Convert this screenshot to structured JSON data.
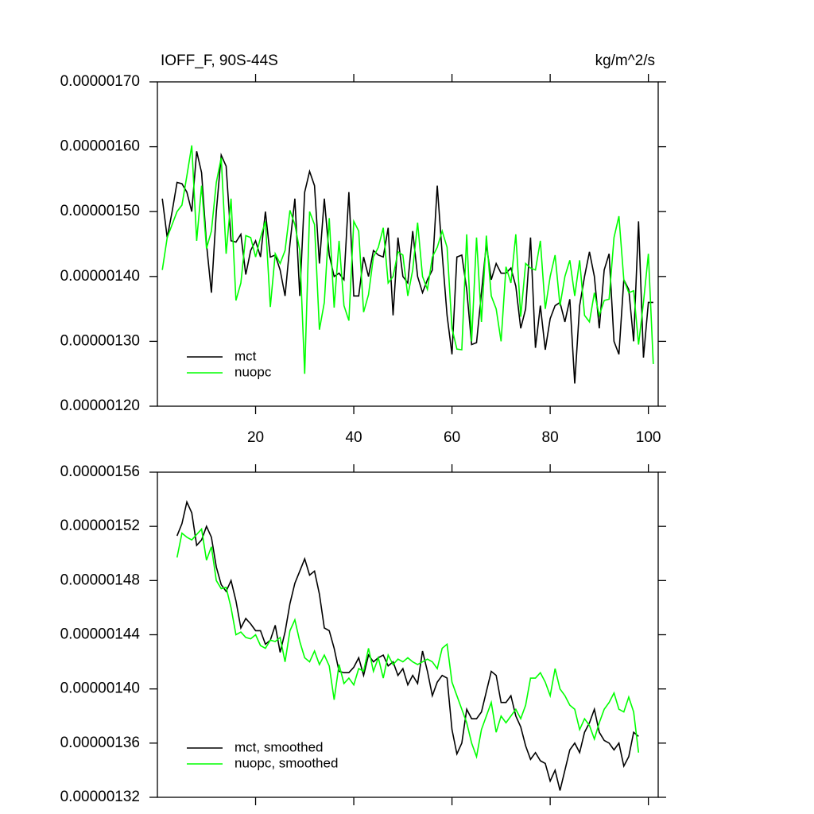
{
  "chart_data": [
    {
      "type": "line",
      "title": "IOFF_F, 90S-44S",
      "units_label": "kg/m^2/s",
      "x": [
        1,
        2,
        3,
        4,
        5,
        6,
        7,
        8,
        9,
        10,
        11,
        12,
        13,
        14,
        15,
        16,
        17,
        18,
        19,
        20,
        21,
        22,
        23,
        24,
        25,
        26,
        27,
        28,
        29,
        30,
        31,
        32,
        33,
        34,
        35,
        36,
        37,
        38,
        39,
        40,
        41,
        42,
        43,
        44,
        45,
        46,
        47,
        48,
        49,
        50,
        51,
        52,
        53,
        54,
        55,
        56,
        57,
        58,
        59,
        60,
        61,
        62,
        63,
        64,
        65,
        66,
        67,
        68,
        69,
        70,
        71,
        72,
        73,
        74,
        75,
        76,
        77,
        78,
        79,
        80,
        81,
        82,
        83,
        84,
        85,
        86,
        87,
        88,
        89,
        90,
        91,
        92,
        93,
        94,
        95,
        96,
        97,
        98,
        99,
        100,
        101
      ],
      "series": [
        {
          "name": "mct",
          "color": "#000000",
          "values": [
            1.52e-06,
            1.46e-06,
            1.5e-06,
            1.545e-06,
            1.543e-06,
            1.53e-06,
            1.5e-06,
            1.593e-06,
            1.56e-06,
            1.45e-06,
            1.375e-06,
            1.5e-06,
            1.587e-06,
            1.57e-06,
            1.455e-06,
            1.453e-06,
            1.465e-06,
            1.403e-06,
            1.44e-06,
            1.455e-06,
            1.43e-06,
            1.5e-06,
            1.43e-06,
            1.433e-06,
            1.41e-06,
            1.37e-06,
            1.45e-06,
            1.52e-06,
            1.37e-06,
            1.53e-06,
            1.562e-06,
            1.54e-06,
            1.42e-06,
            1.52e-06,
            1.433e-06,
            1.4e-06,
            1.405e-06,
            1.395e-06,
            1.53e-06,
            1.37e-06,
            1.37e-06,
            1.43e-06,
            1.4e-06,
            1.44e-06,
            1.433e-06,
            1.43e-06,
            1.475e-06,
            1.34e-06,
            1.46e-06,
            1.4e-06,
            1.39e-06,
            1.47e-06,
            1.4e-06,
            1.375e-06,
            1.395e-06,
            1.41e-06,
            1.54e-06,
            1.435e-06,
            1.34e-06,
            1.28e-06,
            1.43e-06,
            1.433e-06,
            1.38e-06,
            1.295e-06,
            1.298e-06,
            1.375e-06,
            1.45e-06,
            1.395e-06,
            1.42e-06,
            1.405e-06,
            1.405e-06,
            1.413e-06,
            1.385e-06,
            1.32e-06,
            1.35e-06,
            1.46e-06,
            1.29e-06,
            1.355e-06,
            1.287e-06,
            1.335e-06,
            1.355e-06,
            1.36e-06,
            1.33e-06,
            1.365e-06,
            1.235e-06,
            1.355e-06,
            1.4e-06,
            1.438e-06,
            1.4e-06,
            1.32e-06,
            1.41e-06,
            1.435e-06,
            1.3e-06,
            1.28e-06,
            1.395e-06,
            1.38e-06,
            1.3e-06,
            1.485e-06,
            1.275e-06,
            1.36e-06,
            1.36e-06
          ]
        },
        {
          "name": "nuopc",
          "color": "#00ff00",
          "values": [
            1.41e-06,
            1.46e-06,
            1.48e-06,
            1.5e-06,
            1.51e-06,
            1.555e-06,
            1.602e-06,
            1.455e-06,
            1.54e-06,
            1.443e-06,
            1.47e-06,
            1.545e-06,
            1.583e-06,
            1.435e-06,
            1.52e-06,
            1.363e-06,
            1.39e-06,
            1.463e-06,
            1.46e-06,
            1.43e-06,
            1.46e-06,
            1.485e-06,
            1.353e-06,
            1.435e-06,
            1.42e-06,
            1.44e-06,
            1.502e-06,
            1.48e-06,
            1.44e-06,
            1.25e-06,
            1.5e-06,
            1.48e-06,
            1.318e-06,
            1.36e-06,
            1.49e-06,
            1.352e-06,
            1.455e-06,
            1.355e-06,
            1.332e-06,
            1.485e-06,
            1.47e-06,
            1.345e-06,
            1.372e-06,
            1.43e-06,
            1.445e-06,
            1.475e-06,
            1.39e-06,
            1.4e-06,
            1.438e-06,
            1.433e-06,
            1.37e-06,
            1.41e-06,
            1.483e-06,
            1.4e-06,
            1.38e-06,
            1.43e-06,
            1.445e-06,
            1.47e-06,
            1.445e-06,
            1.32e-06,
            1.288e-06,
            1.287e-06,
            1.465e-06,
            1.3e-06,
            1.46e-06,
            1.33e-06,
            1.463e-06,
            1.37e-06,
            1.35e-06,
            1.3e-06,
            1.415e-06,
            1.39e-06,
            1.465e-06,
            1.338e-06,
            1.42e-06,
            1.413e-06,
            1.41e-06,
            1.455e-06,
            1.35e-06,
            1.4e-06,
            1.433e-06,
            1.355e-06,
            1.4e-06,
            1.425e-06,
            1.37e-06,
            1.425e-06,
            1.34e-06,
            1.33e-06,
            1.375e-06,
            1.34e-06,
            1.363e-06,
            1.365e-06,
            1.46e-06,
            1.493e-06,
            1.395e-06,
            1.375e-06,
            1.378e-06,
            1.295e-06,
            1.36e-06,
            1.435e-06,
            1.265e-06
          ]
        }
      ],
      "xlim": [
        0,
        102
      ],
      "xticks": [
        20,
        40,
        60,
        80,
        100
      ],
      "xtick_labels_shown": true,
      "ylim": [
        1.2e-06,
        1.7e-06
      ],
      "yticks": [
        {
          "value": 1.2e-06,
          "label": "0.00000120"
        },
        {
          "value": 1.3e-06,
          "label": "0.00000130"
        },
        {
          "value": 1.4e-06,
          "label": "0.00000140"
        },
        {
          "value": 1.5e-06,
          "label": "0.00000150"
        },
        {
          "value": 1.6e-06,
          "label": "0.00000160"
        },
        {
          "value": 1.7e-06,
          "label": "0.00000170"
        }
      ],
      "legend": "lower left"
    },
    {
      "type": "line",
      "x": [
        4,
        5,
        6,
        7,
        8,
        9,
        10,
        11,
        12,
        13,
        14,
        15,
        16,
        17,
        18,
        19,
        20,
        21,
        22,
        23,
        24,
        25,
        26,
        27,
        28,
        29,
        30,
        31,
        32,
        33,
        34,
        35,
        36,
        37,
        38,
        39,
        40,
        41,
        42,
        43,
        44,
        45,
        46,
        47,
        48,
        49,
        50,
        51,
        52,
        53,
        54,
        55,
        56,
        57,
        58,
        59,
        60,
        61,
        62,
        63,
        64,
        65,
        66,
        67,
        68,
        69,
        70,
        71,
        72,
        73,
        74,
        75,
        76,
        77,
        78,
        79,
        80,
        81,
        82,
        83,
        84,
        85,
        86,
        87,
        88,
        89,
        90,
        91,
        92,
        93,
        94,
        95,
        96,
        97,
        98
      ],
      "series": [
        {
          "name": "mct, smoothed",
          "color": "#000000",
          "values": [
            1.513e-06,
            1.522e-06,
            1.538e-06,
            1.53e-06,
            1.506e-06,
            1.51e-06,
            1.52e-06,
            1.512e-06,
            1.49e-06,
            1.477e-06,
            1.472e-06,
            1.48e-06,
            1.465e-06,
            1.445e-06,
            1.452e-06,
            1.448e-06,
            1.443e-06,
            1.443e-06,
            1.433e-06,
            1.436e-06,
            1.447e-06,
            1.427e-06,
            1.442e-06,
            1.463e-06,
            1.478e-06,
            1.487e-06,
            1.496e-06,
            1.484e-06,
            1.487e-06,
            1.47e-06,
            1.445e-06,
            1.443e-06,
            1.43e-06,
            1.413e-06,
            1.412e-06,
            1.412e-06,
            1.416e-06,
            1.423e-06,
            1.41e-06,
            1.425e-06,
            1.42e-06,
            1.423e-06,
            1.425e-06,
            1.417e-06,
            1.42e-06,
            1.41e-06,
            1.415e-06,
            1.403e-06,
            1.41e-06,
            1.404e-06,
            1.428e-06,
            1.413e-06,
            1.395e-06,
            1.405e-06,
            1.41e-06,
            1.408e-06,
            1.37e-06,
            1.352e-06,
            1.36e-06,
            1.385e-06,
            1.378e-06,
            1.378e-06,
            1.383e-06,
            1.398e-06,
            1.413e-06,
            1.41e-06,
            1.39e-06,
            1.39e-06,
            1.395e-06,
            1.38e-06,
            1.372e-06,
            1.358e-06,
            1.348e-06,
            1.353e-06,
            1.347e-06,
            1.345e-06,
            1.332e-06,
            1.34e-06,
            1.325e-06,
            1.34e-06,
            1.355e-06,
            1.36e-06,
            1.353e-06,
            1.368e-06,
            1.375e-06,
            1.385e-06,
            1.368e-06,
            1.362e-06,
            1.36e-06,
            1.355e-06,
            1.36e-06,
            1.343e-06,
            1.35e-06,
            1.368e-06,
            1.365e-06
          ]
        },
        {
          "name": "nuopc, smoothed",
          "color": "#00ff00",
          "values": [
            1.497e-06,
            1.515e-06,
            1.512e-06,
            1.51e-06,
            1.514e-06,
            1.518e-06,
            1.495e-06,
            1.505e-06,
            1.48e-06,
            1.474e-06,
            1.475e-06,
            1.46e-06,
            1.44e-06,
            1.442e-06,
            1.438e-06,
            1.437e-06,
            1.44e-06,
            1.432e-06,
            1.43e-06,
            1.436e-06,
            1.435e-06,
            1.438e-06,
            1.42e-06,
            1.443e-06,
            1.451e-06,
            1.435e-06,
            1.423e-06,
            1.42e-06,
            1.428e-06,
            1.418e-06,
            1.425e-06,
            1.417e-06,
            1.392e-06,
            1.418e-06,
            1.404e-06,
            1.408e-06,
            1.403e-06,
            1.415e-06,
            1.413e-06,
            1.43e-06,
            1.413e-06,
            1.423e-06,
            1.408e-06,
            1.425e-06,
            1.418e-06,
            1.422e-06,
            1.42e-06,
            1.423e-06,
            1.42e-06,
            1.418e-06,
            1.42e-06,
            1.422e-06,
            1.42e-06,
            1.415e-06,
            1.43e-06,
            1.433e-06,
            1.405e-06,
            1.395e-06,
            1.385e-06,
            1.375e-06,
            1.36e-06,
            1.35e-06,
            1.37e-06,
            1.38e-06,
            1.39e-06,
            1.368e-06,
            1.38e-06,
            1.375e-06,
            1.38e-06,
            1.385e-06,
            1.378e-06,
            1.388e-06,
            1.408e-06,
            1.408e-06,
            1.412e-06,
            1.405e-06,
            1.395e-06,
            1.415e-06,
            1.4e-06,
            1.395e-06,
            1.388e-06,
            1.385e-06,
            1.37e-06,
            1.378e-06,
            1.373e-06,
            1.363e-06,
            1.375e-06,
            1.385e-06,
            1.39e-06,
            1.397e-06,
            1.385e-06,
            1.383e-06,
            1.394e-06,
            1.383e-06,
            1.353e-06
          ]
        }
      ],
      "xlim": [
        0,
        102
      ],
      "xticks": [
        20,
        40,
        60,
        80,
        100
      ],
      "xtick_labels_shown": false,
      "ylim": [
        1.32e-06,
        1.56e-06
      ],
      "yticks": [
        {
          "value": 1.32e-06,
          "label": "0.00000132"
        },
        {
          "value": 1.36e-06,
          "label": "0.00000136"
        },
        {
          "value": 1.4e-06,
          "label": "0.00000140"
        },
        {
          "value": 1.44e-06,
          "label": "0.00000144"
        },
        {
          "value": 1.48e-06,
          "label": "0.00000148"
        },
        {
          "value": 1.52e-06,
          "label": "0.00000152"
        },
        {
          "value": 1.56e-06,
          "label": "0.00000156"
        }
      ],
      "legend": "lower left"
    }
  ]
}
